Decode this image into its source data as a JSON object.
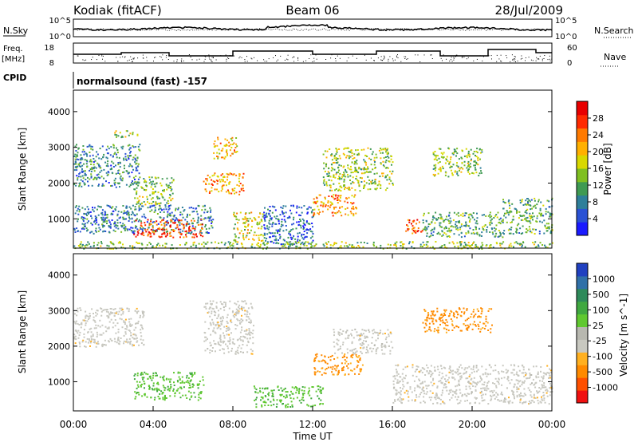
{
  "header": {
    "site": "Kodiak (fitACF)",
    "beam": "Beam 06",
    "date": "28/Jul/2009"
  },
  "top_panels": {
    "nsky_label": "N.Sky",
    "nsearch_label": "N.Search",
    "nsky_ticks": [
      "10^5",
      "10^0"
    ],
    "nsearch_ticks": [
      "10^5",
      "10^0"
    ],
    "freq_label_1": "Freq.",
    "freq_label_2": "[MHz]",
    "freq_ticks": [
      "18",
      "8"
    ],
    "nave_label": "Nave",
    "nave_ticks": [
      "60",
      "0"
    ],
    "cpid_label": "CPID",
    "cpid_value": "normalsound (fast) -157"
  },
  "chart_data": [
    {
      "type": "heatmap",
      "name": "power",
      "ylabel": "Slant Range [km]",
      "xlabel": "",
      "ylim": [
        180,
        4600
      ],
      "xlim_hours": [
        0,
        24
      ],
      "y_ticks": [
        1000,
        2000,
        3000,
        4000
      ],
      "colorbar_label": "Power [dB]",
      "colorbar_ticks": [
        "4",
        "8",
        "12",
        "16",
        "20",
        "24",
        "28"
      ],
      "colorbar_colors": [
        "#1a1aff",
        "#2a52d4",
        "#2e7f9a",
        "#3f9a52",
        "#7fbf20",
        "#d8d800",
        "#ffb000",
        "#ff7a00",
        "#ff2a00",
        "#e80000"
      ],
      "patches": [
        {
          "t": [
            0.0,
            3.3
          ],
          "r": [
            1900,
            3100
          ],
          "v": 9
        },
        {
          "t": [
            2.0,
            3.2
          ],
          "r": [
            3300,
            3500
          ],
          "v": 16
        },
        {
          "t": [
            3.0,
            5.0
          ],
          "r": [
            1400,
            2200
          ],
          "v": 14
        },
        {
          "t": [
            0.0,
            7.0
          ],
          "r": [
            600,
            1400
          ],
          "v": 8
        },
        {
          "t": [
            3.0,
            6.5
          ],
          "r": [
            500,
            1000
          ],
          "v": 26
        },
        {
          "t": [
            6.5,
            8.5
          ],
          "r": [
            1700,
            2300
          ],
          "v": 22
        },
        {
          "t": [
            7.0,
            8.2
          ],
          "r": [
            2700,
            3300
          ],
          "v": 20
        },
        {
          "t": [
            8.0,
            9.5
          ],
          "r": [
            400,
            1200
          ],
          "v": 18
        },
        {
          "t": [
            9.5,
            12.0
          ],
          "r": [
            300,
            1400
          ],
          "v": 6
        },
        {
          "t": [
            12.0,
            14.2
          ],
          "r": [
            1100,
            1700
          ],
          "v": 22
        },
        {
          "t": [
            12.5,
            16.0
          ],
          "r": [
            1800,
            3000
          ],
          "v": 15
        },
        {
          "t": [
            16.5,
            17.5
          ],
          "r": [
            600,
            1000
          ],
          "v": 26
        },
        {
          "t": [
            17.5,
            21.5
          ],
          "r": [
            500,
            1200
          ],
          "v": 12
        },
        {
          "t": [
            18.0,
            20.5
          ],
          "r": [
            2200,
            3000
          ],
          "v": 15
        },
        {
          "t": [
            21.5,
            24.0
          ],
          "r": [
            600,
            1600
          ],
          "v": 12
        },
        {
          "t": [
            0.0,
            24.0
          ],
          "r": [
            180,
            380
          ],
          "v": 14
        }
      ]
    },
    {
      "type": "heatmap",
      "name": "velocity",
      "ylabel": "Slant Range [km]",
      "xlabel": "Time UT",
      "ylim": [
        180,
        4600
      ],
      "xlim_hours": [
        0,
        24
      ],
      "y_ticks": [
        1000,
        2000,
        3000,
        4000
      ],
      "x_ticks": [
        "00:00",
        "04:00",
        "08:00",
        "12:00",
        "16:00",
        "20:00",
        "00:00"
      ],
      "colorbar_label": "Velocity [m s^-1]",
      "colorbar_ticks": [
        "1000",
        "500",
        "100",
        "25",
        "-25",
        "-100",
        "-500",
        "-1000"
      ],
      "colorbar_colors": [
        "#2040c0",
        "#3070a8",
        "#2e8a5a",
        "#40a840",
        "#60c830",
        "#b8b8b0",
        "#c8c8c0",
        "#ffb020",
        "#ff8a00",
        "#ff5000",
        "#f01010"
      ],
      "patches": [
        {
          "t": [
            0.0,
            3.5
          ],
          "r": [
            2000,
            3100
          ],
          "v": 0
        },
        {
          "t": [
            3.0,
            6.5
          ],
          "r": [
            500,
            1300
          ],
          "v": 80
        },
        {
          "t": [
            6.5,
            9.0
          ],
          "r": [
            1800,
            3300
          ],
          "v": 0
        },
        {
          "t": [
            9.0,
            12.5
          ],
          "r": [
            300,
            900
          ],
          "v": 150
        },
        {
          "t": [
            12.0,
            14.5
          ],
          "r": [
            1200,
            1800
          ],
          "v": -300
        },
        {
          "t": [
            13.0,
            16.0
          ],
          "r": [
            1800,
            2500
          ],
          "v": 0
        },
        {
          "t": [
            17.5,
            21.0
          ],
          "r": [
            2400,
            3100
          ],
          "v": -300
        },
        {
          "t": [
            16.0,
            24.0
          ],
          "r": [
            400,
            1500
          ],
          "v": 0
        }
      ]
    }
  ]
}
